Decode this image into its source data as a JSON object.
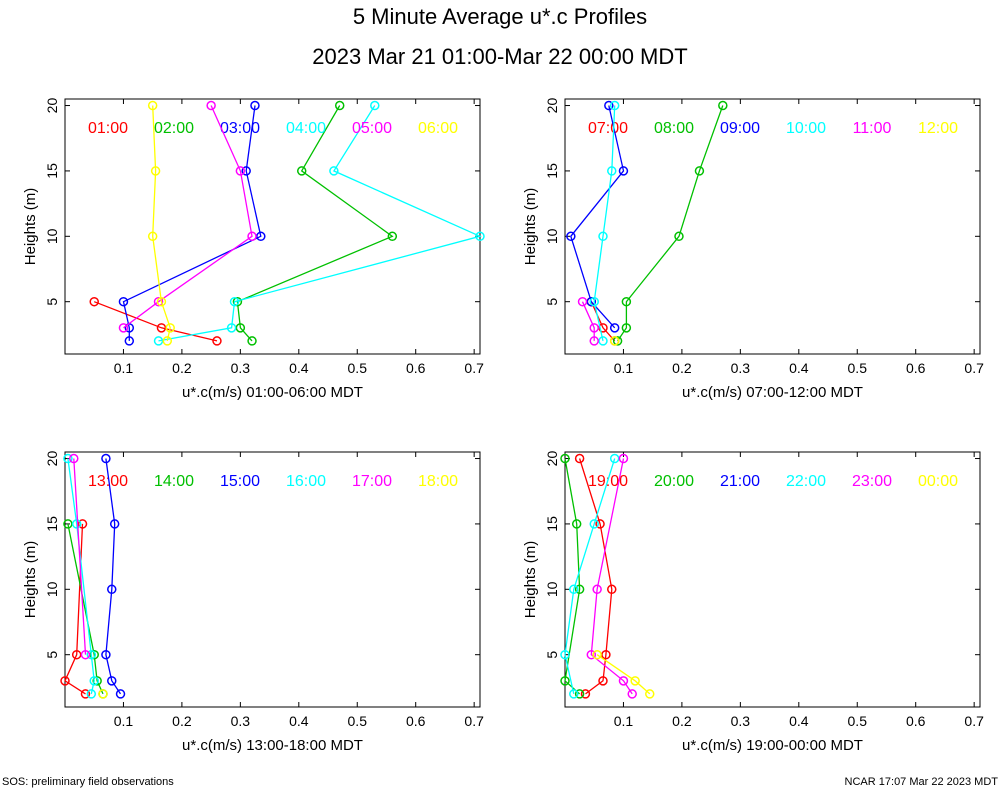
{
  "title": "5 Minute Average u*.c Profiles",
  "subtitle": "2023 Mar 21 01:00-Mar 22 00:00 MDT",
  "footer_left": "SOS: preliminary field observations",
  "footer_right": "NCAR 17:07 Mar 22 2023 MDT",
  "colors": [
    "#ff0000",
    "#00c000",
    "#0000ff",
    "#00ffff",
    "#ff00ff",
    "#ffff00"
  ],
  "chart_data": [
    {
      "type": "line",
      "xlabel": "u*.c(m/s) 01:00-06:00 MDT",
      "ylabel": "Heights (m)",
      "xlim": [
        0,
        0.71
      ],
      "ylim": [
        1,
        20.5
      ],
      "xticks": [
        0.1,
        0.2,
        0.3,
        0.4,
        0.5,
        0.6,
        0.7
      ],
      "yticks": [
        5,
        10,
        15,
        20
      ],
      "series": [
        {
          "name": "01:00",
          "points": [
            [
              0.05,
              5
            ],
            [
              0.165,
              3
            ],
            [
              0.26,
              2
            ]
          ]
        },
        {
          "name": "02:00",
          "points": [
            [
              0.47,
              20
            ],
            [
              0.405,
              15
            ],
            [
              0.56,
              10
            ],
            [
              0.295,
              5
            ],
            [
              0.3,
              3
            ],
            [
              0.32,
              2
            ]
          ]
        },
        {
          "name": "03:00",
          "points": [
            [
              0.325,
              20
            ],
            [
              0.31,
              15
            ],
            [
              0.335,
              10
            ],
            [
              0.1,
              5
            ],
            [
              0.11,
              3
            ],
            [
              0.11,
              2
            ]
          ]
        },
        {
          "name": "04:00",
          "points": [
            [
              0.53,
              20
            ],
            [
              0.46,
              15
            ],
            [
              0.71,
              10
            ],
            [
              0.29,
              5
            ],
            [
              0.285,
              3
            ],
            [
              0.16,
              2
            ]
          ]
        },
        {
          "name": "05:00",
          "points": [
            [
              0.25,
              20
            ],
            [
              0.3,
              15
            ],
            [
              0.32,
              10
            ],
            [
              0.16,
              5
            ],
            [
              0.1,
              3
            ]
          ]
        },
        {
          "name": "06:00",
          "points": [
            [
              0.15,
              20
            ],
            [
              0.155,
              15
            ],
            [
              0.15,
              10
            ],
            [
              0.165,
              5
            ],
            [
              0.18,
              3
            ],
            [
              0.175,
              2
            ]
          ]
        }
      ]
    },
    {
      "type": "line",
      "xlabel": "u*.c(m/s) 07:00-12:00 MDT",
      "ylabel": "Heights (m)",
      "xlim": [
        0,
        0.71
      ],
      "ylim": [
        1,
        20.5
      ],
      "xticks": [
        0.1,
        0.2,
        0.3,
        0.4,
        0.5,
        0.6,
        0.7
      ],
      "yticks": [
        5,
        10,
        15,
        20
      ],
      "series": [
        {
          "name": "07:00",
          "points": [
            [
              0.045,
              5
            ],
            [
              0.065,
              3
            ],
            [
              0.085,
              2
            ]
          ]
        },
        {
          "name": "08:00",
          "points": [
            [
              0.27,
              20
            ],
            [
              0.23,
              15
            ],
            [
              0.195,
              10
            ],
            [
              0.105,
              5
            ],
            [
              0.105,
              3
            ],
            [
              0.09,
              2
            ]
          ]
        },
        {
          "name": "09:00",
          "points": [
            [
              0.075,
              20
            ],
            [
              0.1,
              15
            ],
            [
              0.01,
              10
            ],
            [
              0.045,
              5
            ],
            [
              0.085,
              3
            ]
          ]
        },
        {
          "name": "10:00",
          "points": [
            [
              0.085,
              20
            ],
            [
              0.08,
              15
            ],
            [
              0.065,
              10
            ],
            [
              0.05,
              5
            ],
            [
              0.065,
              2
            ]
          ]
        },
        {
          "name": "11:00",
          "points": [
            [
              0.03,
              5
            ],
            [
              0.05,
              3
            ],
            [
              0.05,
              2
            ]
          ]
        },
        {
          "name": "12:00",
          "points": [
            [
              0.085,
              2
            ]
          ]
        }
      ]
    },
    {
      "type": "line",
      "xlabel": "u*.c(m/s) 13:00-18:00 MDT",
      "ylabel": "Heights (m)",
      "xlim": [
        0,
        0.71
      ],
      "ylim": [
        1,
        20.5
      ],
      "xticks": [
        0.1,
        0.2,
        0.3,
        0.4,
        0.5,
        0.6,
        0.7
      ],
      "yticks": [
        5,
        10,
        15,
        20
      ],
      "series": [
        {
          "name": "13:00",
          "points": [
            [
              0.03,
              15
            ],
            [
              0.02,
              5
            ],
            [
              0.0,
              3
            ],
            [
              0.035,
              2
            ]
          ]
        },
        {
          "name": "14:00",
          "points": [
            [
              0.005,
              15
            ],
            [
              0.05,
              5
            ],
            [
              0.055,
              3
            ],
            [
              0.065,
              2
            ]
          ]
        },
        {
          "name": "15:00",
          "points": [
            [
              0.07,
              20
            ],
            [
              0.085,
              15
            ],
            [
              0.08,
              10
            ],
            [
              0.07,
              5
            ],
            [
              0.08,
              3
            ],
            [
              0.095,
              2
            ]
          ]
        },
        {
          "name": "16:00",
          "points": [
            [
              0.005,
              20
            ],
            [
              0.02,
              15
            ],
            [
              0.045,
              5
            ],
            [
              0.05,
              3
            ],
            [
              0.045,
              2
            ]
          ]
        },
        {
          "name": "17:00",
          "points": [
            [
              0.015,
              20
            ],
            [
              0.035,
              5
            ]
          ]
        },
        {
          "name": "18:00",
          "points": [
            [
              0.065,
              2
            ]
          ]
        }
      ]
    },
    {
      "type": "line",
      "xlabel": "u*.c(m/s) 19:00-00:00 MDT",
      "ylabel": "Heights (m)",
      "xlim": [
        0,
        0.71
      ],
      "ylim": [
        1,
        20.5
      ],
      "xticks": [
        0.1,
        0.2,
        0.3,
        0.4,
        0.5,
        0.6,
        0.7
      ],
      "yticks": [
        5,
        10,
        15,
        20
      ],
      "series": [
        {
          "name": "19:00",
          "points": [
            [
              0.025,
              20
            ],
            [
              0.06,
              15
            ],
            [
              0.08,
              10
            ],
            [
              0.07,
              5
            ],
            [
              0.065,
              3
            ],
            [
              0.035,
              2
            ]
          ]
        },
        {
          "name": "20:00",
          "points": [
            [
              0.0,
              20
            ],
            [
              0.02,
              15
            ],
            [
              0.025,
              10
            ],
            [
              0.0,
              3
            ],
            [
              0.025,
              2
            ]
          ]
        },
        {
          "name": "21:00",
          "points": []
        },
        {
          "name": "22:00",
          "points": [
            [
              0.085,
              20
            ],
            [
              0.05,
              15
            ],
            [
              0.015,
              10
            ],
            [
              0.0,
              5
            ],
            [
              0.015,
              2
            ]
          ]
        },
        {
          "name": "23:00",
          "points": [
            [
              0.1,
              20
            ],
            [
              0.055,
              10
            ],
            [
              0.045,
              5
            ],
            [
              0.1,
              3
            ],
            [
              0.115,
              2
            ]
          ]
        },
        {
          "name": "00:00",
          "points": [
            [
              0.055,
              5
            ],
            [
              0.12,
              3
            ],
            [
              0.145,
              2
            ]
          ]
        }
      ]
    }
  ]
}
